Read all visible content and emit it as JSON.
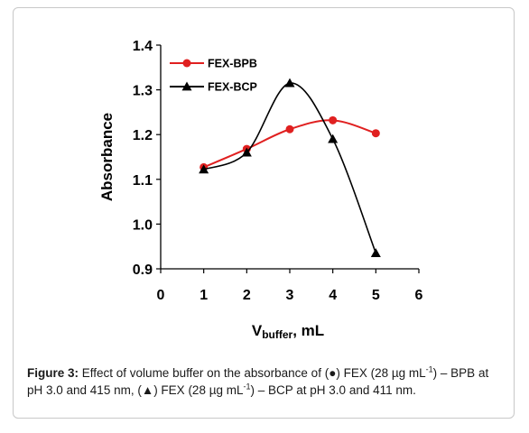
{
  "chart_data": {
    "type": "line",
    "title": "",
    "xlabel_main": "V",
    "xlabel_sub": "buffer",
    "xlabel_unit": ", mL",
    "ylabel": "Absorbance",
    "xlim": [
      0,
      6
    ],
    "ylim": [
      0.9,
      1.4
    ],
    "xticks": [
      "0",
      "1",
      "2",
      "3",
      "4",
      "5",
      "6"
    ],
    "yticks": [
      "0.9",
      "1.0",
      "1.1",
      "1.2",
      "1.3",
      "1.4"
    ],
    "legend_position": "top-left",
    "grid": false,
    "series": [
      {
        "name": "FEX-BPB",
        "marker": "circle",
        "color": "#e02020",
        "smooth": true,
        "x": [
          1,
          2,
          3,
          4,
          5
        ],
        "y": [
          1.127,
          1.168,
          1.212,
          1.232,
          1.203
        ]
      },
      {
        "name": "FEX-BCP",
        "marker": "triangle",
        "color": "#000000",
        "smooth": true,
        "x": [
          1,
          2,
          3,
          4,
          5
        ],
        "y": [
          1.122,
          1.16,
          1.315,
          1.19,
          0.935
        ]
      }
    ]
  },
  "caption": {
    "label": "Figure 3:",
    "part1": " Effect of volume buffer on the absorbance of (●) FEX (28 µg mL",
    "sup1": "-1",
    "part2": ") – BPB at pH 3.0 and 415 nm, (▲) FEX (28 µg mL",
    "sup2": "-1",
    "part3": ") – BCP at pH 3.0 and 411 nm."
  }
}
